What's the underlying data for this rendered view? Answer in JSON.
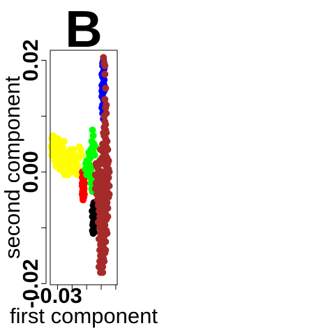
{
  "chart_data": {
    "type": "scatter",
    "panel_label": "B",
    "xlabel": "first component",
    "ylabel": "second component",
    "x_tick_labels": [
      "-0.03"
    ],
    "y_tick_labels": [
      "-0.02",
      "0.00",
      "0.02"
    ],
    "xlim": [
      -0.035,
      0.011
    ],
    "ylim": [
      -0.0202,
      0.0218
    ],
    "grid": false,
    "legend": "none",
    "series": [
      {
        "color": "#ffff00",
        "points": [
          [
            -0.034,
            0.006
          ],
          [
            -0.033,
            0.005
          ],
          [
            -0.032,
            0.0055
          ],
          [
            -0.0335,
            0.004
          ],
          [
            -0.0325,
            0.003
          ],
          [
            -0.031,
            0.0045
          ],
          [
            -0.03,
            0.0035
          ],
          [
            -0.0315,
            0.0025
          ],
          [
            -0.0295,
            0.005
          ],
          [
            -0.0285,
            0.003
          ],
          [
            -0.028,
            0.004
          ],
          [
            -0.027,
            0.002
          ],
          [
            -0.0275,
            0.001
          ],
          [
            -0.026,
            0.003
          ],
          [
            -0.025,
            0.0025
          ],
          [
            -0.0245,
            0.0015
          ],
          [
            -0.0235,
            0.002
          ],
          [
            -0.0225,
            0.003
          ],
          [
            -0.0215,
            0.002
          ],
          [
            -0.0205,
            0.001
          ],
          [
            -0.0195,
            0.0015
          ],
          [
            -0.0185,
            0.0025
          ],
          [
            -0.026,
            0.0
          ],
          [
            -0.025,
            -0.0005
          ],
          [
            -0.023,
            0.001
          ],
          [
            -0.034,
            0.003
          ],
          [
            -0.033,
            0.0065
          ],
          [
            -0.03,
            0.006
          ],
          [
            -0.029,
            0.0015
          ],
          [
            -0.031,
            0.001
          ],
          [
            -0.0265,
            0.0045
          ],
          [
            -0.024,
            0.0035
          ],
          [
            -0.022,
            0.0005
          ],
          [
            -0.02,
            0.003
          ],
          [
            -0.018,
            0.0005
          ],
          [
            -0.017,
            0.0015
          ],
          [
            -0.016,
            0.001
          ],
          [
            -0.0225,
            -0.0005
          ],
          [
            -0.0205,
            0.0
          ],
          [
            -0.019,
            0.004
          ],
          [
            -0.0255,
            0.0055
          ],
          [
            -0.0285,
            0.0005
          ],
          [
            -0.015,
            0.0045
          ],
          [
            -0.014,
            0.004
          ],
          [
            -0.0135,
            0.003
          ],
          [
            -0.0345,
            0.0045
          ],
          [
            -0.032,
            0.002
          ],
          [
            -0.0275,
            0.0055
          ],
          [
            -0.0215,
            0.004
          ],
          [
            -0.0175,
            0.003
          ],
          [
            -0.0155,
            0.0025
          ],
          [
            -0.0165,
            -0.0005
          ]
        ]
      },
      {
        "color": "#ff0000",
        "points": [
          [
            -0.013,
            0.0
          ],
          [
            -0.0125,
            -0.0005
          ],
          [
            -0.013,
            -0.001
          ],
          [
            -0.0125,
            -0.0015
          ],
          [
            -0.013,
            -0.002
          ],
          [
            -0.012,
            -0.0025
          ],
          [
            -0.0125,
            -0.003
          ],
          [
            -0.012,
            -0.0035
          ],
          [
            -0.013,
            -0.004
          ],
          [
            -0.012,
            -0.0045
          ],
          [
            -0.0115,
            -0.002
          ],
          [
            -0.0115,
            -0.001
          ],
          [
            -0.012,
            0.0
          ],
          [
            -0.0125,
            -0.005
          ],
          [
            -0.013,
            -0.0025
          ],
          [
            -0.0118,
            -0.003
          ],
          [
            -0.0128,
            -0.0035
          ],
          [
            -0.012,
            -0.0015
          ],
          [
            -0.0126,
            -0.0045
          ],
          [
            -0.0116,
            -0.004
          ]
        ]
      },
      {
        "color": "#00ff00",
        "points": [
          [
            -0.006,
            0.0075
          ],
          [
            -0.0055,
            0.0065
          ],
          [
            -0.0065,
            0.0055
          ],
          [
            -0.005,
            0.005
          ],
          [
            -0.006,
            0.0045
          ],
          [
            -0.007,
            0.004
          ],
          [
            -0.0085,
            0.0035
          ],
          [
            -0.008,
            0.003
          ],
          [
            -0.0075,
            0.0025
          ],
          [
            -0.009,
            0.002
          ],
          [
            -0.01,
            0.002
          ],
          [
            -0.011,
            0.0005
          ],
          [
            -0.0095,
            0.001
          ],
          [
            -0.0085,
            0.0015
          ],
          [
            -0.007,
            0.0005
          ],
          [
            -0.008,
            0.0
          ],
          [
            -0.0065,
            -0.0005
          ],
          [
            -0.0075,
            -0.001
          ],
          [
            -0.006,
            -0.0015
          ],
          [
            -0.007,
            -0.002
          ],
          [
            -0.0065,
            -0.003
          ],
          [
            -0.006,
            -0.0035
          ],
          [
            -0.0055,
            0.0035
          ],
          [
            -0.004,
            0.0045
          ],
          [
            -0.0045,
            0.003
          ],
          [
            -0.0105,
            0.0015
          ],
          [
            -0.01,
            -0.0005
          ],
          [
            -0.005,
            0.001
          ],
          [
            -0.0055,
            -0.0025
          ]
        ]
      },
      {
        "color": "#0000ff",
        "points": [
          [
            0.0015,
            0.02
          ],
          [
            0.001,
            0.019
          ],
          [
            0.002,
            0.0185
          ],
          [
            0.0015,
            0.018
          ],
          [
            0.0005,
            0.0175
          ],
          [
            0.001,
            0.017
          ],
          [
            0.002,
            0.0165
          ],
          [
            0.0015,
            0.016
          ],
          [
            0.0005,
            0.0155
          ],
          [
            0.001,
            0.015
          ],
          [
            0.002,
            0.0145
          ],
          [
            0.001,
            0.014
          ],
          [
            0.0005,
            0.0135
          ],
          [
            0.0015,
            0.013
          ],
          [
            0.002,
            0.0125
          ],
          [
            0.001,
            0.012
          ],
          [
            0.0005,
            0.0115
          ],
          [
            0.0015,
            0.011
          ],
          [
            0.001,
            0.0105
          ],
          [
            0.002,
            0.01
          ],
          [
            0.0015,
            0.0095
          ],
          [
            0.001,
            0.0195
          ],
          [
            0.002,
            0.0155
          ],
          [
            0.0005,
            0.0145
          ]
        ]
      },
      {
        "color": "#000000",
        "points": [
          [
            -0.005,
            -0.0055
          ],
          [
            -0.0055,
            -0.006
          ],
          [
            -0.0045,
            -0.0065
          ],
          [
            -0.0055,
            -0.007
          ],
          [
            -0.005,
            -0.0075
          ],
          [
            -0.006,
            -0.008
          ],
          [
            -0.005,
            -0.0085
          ],
          [
            -0.0055,
            -0.009
          ],
          [
            -0.0045,
            -0.0095
          ],
          [
            -0.005,
            -0.01
          ],
          [
            -0.006,
            -0.0105
          ],
          [
            -0.0055,
            -0.011
          ],
          [
            -0.0045,
            -0.008
          ],
          [
            -0.005,
            -0.0065
          ],
          [
            -0.0058,
            -0.0095
          ],
          [
            -0.0048,
            -0.0108
          ],
          [
            -0.0042,
            -0.009
          ],
          [
            -0.0062,
            -0.007
          ]
        ]
      },
      {
        "color": "#a52a2a",
        "points": [
          [
            0.0015,
            0.0205
          ],
          [
            0.002,
            0.0195
          ],
          [
            0.0025,
            0.019
          ],
          [
            0.0025,
            0.0175
          ],
          [
            0.003,
            0.015
          ],
          [
            0.0025,
            0.013
          ],
          [
            0.003,
            0.0115
          ],
          [
            0.0035,
            0.0105
          ],
          [
            0.0025,
            0.009
          ],
          [
            0.002,
            0.008
          ],
          [
            0.003,
            0.0075
          ],
          [
            0.0035,
            0.007
          ],
          [
            0.0015,
            0.007
          ],
          [
            0.002,
            0.0065
          ],
          [
            0.003,
            0.006
          ],
          [
            0.004,
            0.0055
          ],
          [
            0.001,
            0.005
          ],
          [
            0.0025,
            0.005
          ],
          [
            0.0035,
            0.0045
          ],
          [
            0.0045,
            0.004
          ],
          [
            -0.0005,
            0.004
          ],
          [
            0.0015,
            0.0035
          ],
          [
            0.003,
            0.003
          ],
          [
            0.004,
            0.0025
          ],
          [
            0.005,
            0.002
          ],
          [
            -0.001,
            0.002
          ],
          [
            0.0005,
            0.0015
          ],
          [
            0.002,
            0.0015
          ],
          [
            0.0035,
            0.001
          ],
          [
            0.005,
            0.0005
          ],
          [
            -0.003,
            0.001
          ],
          [
            -0.002,
            0.0005
          ],
          [
            -0.001,
            0.0
          ],
          [
            0.0005,
            0.0
          ],
          [
            0.002,
            0.0
          ],
          [
            0.004,
            0.0
          ],
          [
            0.0055,
            0.0
          ],
          [
            -0.004,
            -0.0005
          ],
          [
            -0.0025,
            -0.001
          ],
          [
            -0.001,
            -0.001
          ],
          [
            0.001,
            -0.001
          ],
          [
            0.003,
            -0.001
          ],
          [
            0.005,
            -0.001
          ],
          [
            -0.0035,
            -0.002
          ],
          [
            -0.002,
            -0.002
          ],
          [
            0.0,
            -0.002
          ],
          [
            0.002,
            -0.002
          ],
          [
            0.004,
            -0.002
          ],
          [
            0.0055,
            -0.0025
          ],
          [
            -0.004,
            -0.003
          ],
          [
            -0.002,
            -0.003
          ],
          [
            0.0,
            -0.003
          ],
          [
            0.002,
            -0.003
          ],
          [
            0.004,
            -0.0035
          ],
          [
            -0.003,
            -0.004
          ],
          [
            -0.001,
            -0.004
          ],
          [
            0.001,
            -0.004
          ],
          [
            0.003,
            -0.0045
          ],
          [
            0.005,
            -0.0045
          ],
          [
            -0.0025,
            -0.005
          ],
          [
            0.0,
            -0.005
          ],
          [
            0.002,
            -0.0055
          ],
          [
            0.004,
            -0.0055
          ],
          [
            -0.002,
            -0.006
          ],
          [
            0.0005,
            -0.006
          ],
          [
            0.0025,
            -0.0065
          ],
          [
            0.0045,
            -0.0065
          ],
          [
            -0.0015,
            -0.007
          ],
          [
            0.001,
            -0.0075
          ],
          [
            0.003,
            -0.0075
          ],
          [
            -0.001,
            -0.008
          ],
          [
            0.0015,
            -0.0085
          ],
          [
            0.0035,
            -0.0085
          ],
          [
            -0.002,
            -0.009
          ],
          [
            0.0005,
            -0.0095
          ],
          [
            0.0025,
            -0.0095
          ],
          [
            -0.001,
            -0.01
          ],
          [
            0.0015,
            -0.0105
          ],
          [
            0.0035,
            -0.0105
          ],
          [
            -0.0005,
            -0.011
          ],
          [
            0.002,
            -0.0115
          ],
          [
            -0.0015,
            -0.012
          ],
          [
            0.001,
            -0.0125
          ],
          [
            0.003,
            -0.0125
          ],
          [
            -0.0005,
            -0.013
          ],
          [
            0.0015,
            -0.0135
          ],
          [
            -0.001,
            -0.014
          ],
          [
            0.001,
            -0.0145
          ],
          [
            0.0025,
            -0.0145
          ],
          [
            -0.0005,
            -0.015
          ],
          [
            0.0015,
            -0.0155
          ],
          [
            -0.001,
            -0.016
          ],
          [
            0.0005,
            -0.0165
          ],
          [
            -0.0015,
            -0.017
          ],
          [
            0.001,
            -0.017
          ],
          [
            0.0,
            -0.0175
          ],
          [
            -0.0005,
            -0.018
          ],
          [
            0.001,
            -0.018
          ],
          [
            0.002,
            -0.016
          ],
          [
            0.003,
            -0.014
          ],
          [
            0.0045,
            0.0015
          ],
          [
            0.0055,
            -0.004
          ],
          [
            -0.0035,
            0.0015
          ],
          [
            0.0005,
            0.0025
          ],
          [
            0.003,
            0.0085
          ],
          [
            0.002,
            0.01
          ],
          [
            0.0035,
            0.012
          ],
          [
            0.004,
            -0.0015
          ],
          [
            0.0045,
            -0.008
          ],
          [
            0.004,
            -0.011
          ]
        ]
      }
    ]
  }
}
